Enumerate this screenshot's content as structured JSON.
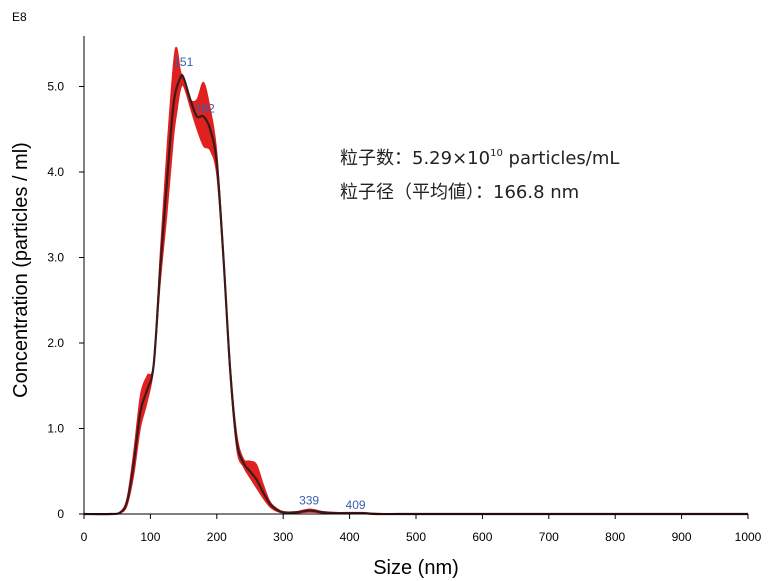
{
  "chart_data": {
    "type": "line",
    "xlabel": "Size (nm)",
    "ylabel": "Concentration (particles / ml)",
    "y_exponent_label": "E8",
    "xlim": [
      0,
      1000
    ],
    "ylim": [
      0,
      5.8
    ],
    "x_ticks": [
      "0",
      "100",
      "200",
      "300",
      "400",
      "500",
      "600",
      "700",
      "800",
      "900",
      "1000"
    ],
    "x_tick_values": [
      0,
      100,
      200,
      300,
      400,
      500,
      600,
      700,
      800,
      900,
      1000
    ],
    "y_ticks": [
      "0",
      "1.0",
      "2.0",
      "3.0",
      "4.0",
      "5.0"
    ],
    "y_tick_values": [
      0,
      1,
      2,
      3,
      4,
      5
    ],
    "grid": false,
    "series": [
      {
        "kind": "mean",
        "color": "#3a1a1a",
        "x": [
          0,
          40,
          55,
          65,
          75,
          85,
          95,
          105,
          115,
          125,
          135,
          145,
          150,
          160,
          170,
          180,
          190,
          200,
          210,
          220,
          230,
          240,
          250,
          260,
          270,
          280,
          290,
          300,
          320,
          340,
          360,
          380,
          400,
          420,
          440,
          500,
          600,
          700,
          800,
          900,
          1000
        ],
        "y": [
          0,
          0,
          0.02,
          0.15,
          0.6,
          1.2,
          1.45,
          1.75,
          2.9,
          3.9,
          4.8,
          5.1,
          5.1,
          4.85,
          4.65,
          4.65,
          4.5,
          4.1,
          3.0,
          1.7,
          0.85,
          0.6,
          0.5,
          0.4,
          0.25,
          0.12,
          0.05,
          0.02,
          0.02,
          0.04,
          0.02,
          0.01,
          0.01,
          0.01,
          0.0,
          0,
          0,
          0,
          0,
          0,
          0
        ]
      },
      {
        "kind": "error-band-upper",
        "color": "#e0211f",
        "x": [
          0,
          40,
          55,
          65,
          75,
          85,
          95,
          105,
          115,
          125,
          135,
          140,
          145,
          150,
          160,
          170,
          180,
          190,
          200,
          210,
          220,
          230,
          240,
          250,
          260,
          270,
          280,
          290,
          300,
          320,
          340,
          360,
          380,
          400,
          420,
          440,
          500,
          600,
          700,
          800,
          900,
          1000
        ],
        "y": [
          0,
          0,
          0.03,
          0.2,
          0.75,
          1.4,
          1.62,
          1.78,
          3.1,
          4.3,
          5.3,
          5.45,
          5.2,
          5.05,
          4.85,
          4.85,
          5.05,
          4.75,
          4.25,
          3.1,
          1.8,
          0.95,
          0.65,
          0.62,
          0.58,
          0.35,
          0.15,
          0.07,
          0.03,
          0.03,
          0.06,
          0.03,
          0.02,
          0.02,
          0.02,
          0.01,
          0,
          0,
          0,
          0,
          0,
          0
        ]
      },
      {
        "kind": "error-band-lower",
        "color": "#e0211f",
        "x": [
          0,
          40,
          55,
          65,
          75,
          85,
          95,
          105,
          115,
          125,
          135,
          140,
          145,
          150,
          160,
          170,
          180,
          190,
          200,
          210,
          220,
          230,
          240,
          250,
          260,
          270,
          280,
          290,
          300,
          320,
          340,
          360,
          380,
          400,
          420,
          440,
          500,
          600,
          700,
          800,
          900,
          1000
        ],
        "y": [
          0,
          0,
          0.01,
          0.1,
          0.45,
          1.0,
          1.3,
          1.7,
          2.7,
          3.5,
          4.4,
          4.7,
          4.95,
          5.0,
          4.75,
          4.5,
          4.3,
          4.25,
          3.95,
          2.9,
          1.6,
          0.75,
          0.55,
          0.42,
          0.3,
          0.18,
          0.08,
          0.03,
          0.01,
          0.01,
          0.02,
          0.01,
          0.0,
          0.0,
          0.0,
          0.0,
          0,
          0,
          0,
          0,
          0,
          0
        ]
      }
    ],
    "peak_labels": [
      {
        "text": "151",
        "x": 151,
        "y": 5.1
      },
      {
        "text": "182",
        "x": 182,
        "y": 4.65
      },
      {
        "text": "339",
        "x": 339,
        "y": 0.04
      },
      {
        "text": "409",
        "x": 409,
        "y": 0.01
      }
    ],
    "annotations": {
      "line1_prefix": "粒子数：5.29×10",
      "line1_sup": "10",
      "line1_suffix": " particles/mL",
      "line2": "粒子径（平均値）：166.8 nm"
    }
  }
}
